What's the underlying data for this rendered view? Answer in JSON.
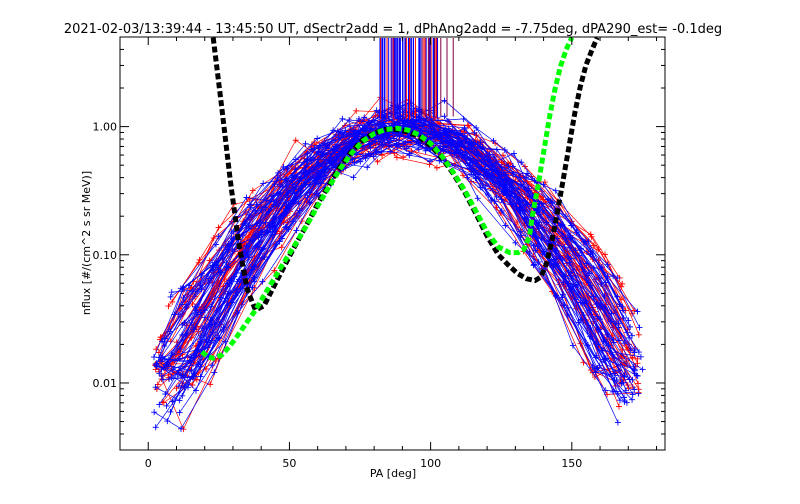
{
  "chart_data": {
    "type": "line",
    "title": "2021-02-03/13:39:44 - 13:45:50 UT, dSectr2add = 1, dPhAng2add = -7.75deg, dPA290_est=  -0.1deg",
    "xlabel": "PA [deg]",
    "ylabel": "nflux [#/(cm^2 s sr MeV)]",
    "xlim": [
      -10,
      183
    ],
    "ylim": [
      0.003,
      5.0
    ],
    "y_scale": "log",
    "grid": false,
    "x_ticks": [
      0,
      50,
      100,
      150
    ],
    "x_tick_labels": [
      "0",
      "50",
      "100",
      "150"
    ],
    "y_ticks": [
      0.01,
      0.1,
      1.0
    ],
    "y_tick_labels": [
      "0.01",
      "0.10",
      "1.00"
    ],
    "colors": {
      "red_traces": "#ff0000",
      "blue_traces": "#0000ff",
      "black_fit": "#000000",
      "green_fit": "#00ff00"
    },
    "series": [
      {
        "color": "#000000",
        "style": "dashed-thick",
        "x": [
          23,
          26,
          29,
          32,
          35,
          38,
          41,
          44,
          48,
          52,
          56,
          60,
          64,
          68,
          72,
          76,
          80,
          84,
          88,
          92,
          96,
          100,
          104,
          108,
          112,
          116,
          120,
          124,
          128,
          131,
          134,
          137,
          139,
          141,
          143,
          145,
          147,
          149,
          151,
          153,
          155,
          157,
          159
        ],
        "y": [
          4.95,
          1.42,
          0.39,
          0.125,
          0.054,
          0.037,
          0.04,
          0.054,
          0.08,
          0.118,
          0.17,
          0.25,
          0.35,
          0.49,
          0.64,
          0.79,
          0.89,
          0.95,
          0.95,
          0.91,
          0.83,
          0.71,
          0.57,
          0.43,
          0.31,
          0.21,
          0.14,
          0.1,
          0.081,
          0.071,
          0.065,
          0.063,
          0.067,
          0.085,
          0.13,
          0.22,
          0.39,
          0.7,
          1.25,
          2.05,
          3.0,
          3.9,
          4.95
        ]
      },
      {
        "color": "#00ff00",
        "style": "dashed-thick",
        "x": [
          19,
          21,
          23,
          26,
          29,
          32,
          35,
          38,
          41,
          44,
          48,
          52,
          56,
          60,
          64,
          68,
          72,
          76,
          80,
          84,
          88,
          92,
          96,
          100,
          104,
          108,
          112,
          116,
          120,
          124,
          128,
          131,
          133,
          135,
          136,
          138,
          140,
          142,
          144,
          146,
          148,
          150
        ],
        "y": [
          0.0175,
          0.016,
          0.0156,
          0.0165,
          0.0195,
          0.024,
          0.03,
          0.037,
          0.048,
          0.062,
          0.087,
          0.12,
          0.168,
          0.24,
          0.34,
          0.47,
          0.62,
          0.77,
          0.88,
          0.95,
          0.97,
          0.94,
          0.86,
          0.74,
          0.59,
          0.44,
          0.32,
          0.22,
          0.15,
          0.115,
          0.104,
          0.104,
          0.11,
          0.14,
          0.2,
          0.34,
          0.63,
          1.15,
          1.95,
          2.95,
          4.0,
          4.95
        ]
      }
    ]
  }
}
